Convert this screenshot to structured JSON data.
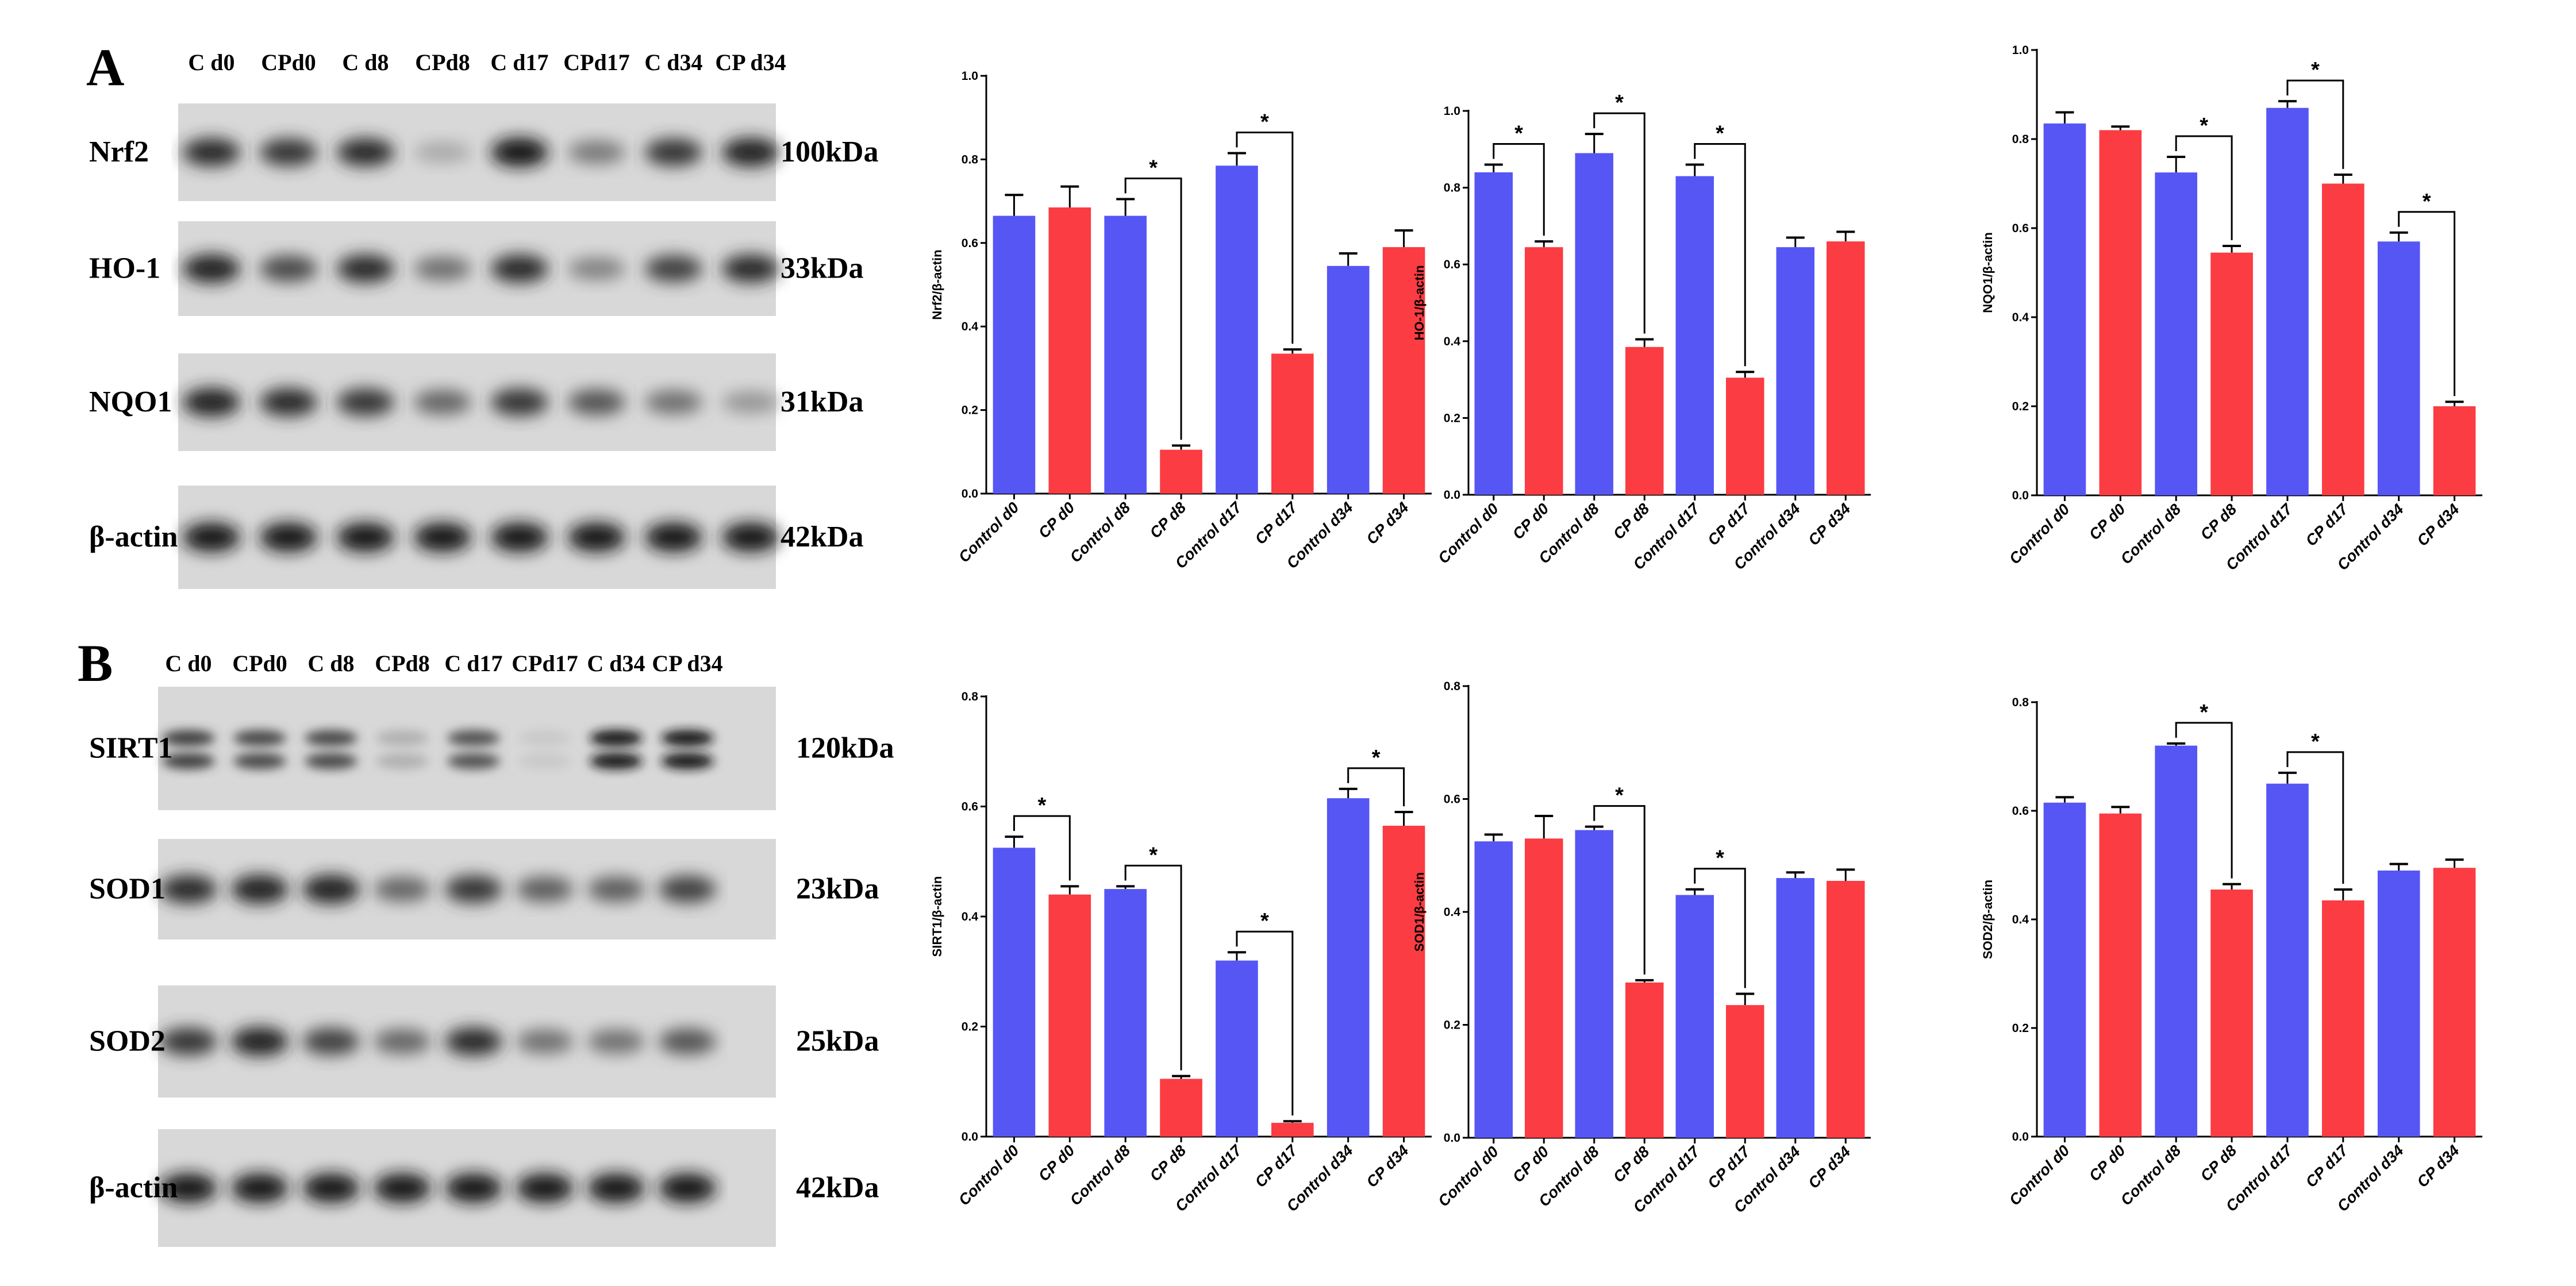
{
  "panel_a_label": "A",
  "panel_b_label": "B",
  "colors": {
    "control": "#5656f5",
    "cp": "#fb3c42"
  },
  "blots": [
    {
      "panel": "A",
      "lanes": [
        "C d0",
        "CPd0",
        "C d8",
        "CPd8",
        "C d17",
        "CPd17",
        "C d34",
        "CP d34"
      ],
      "rows": [
        {
          "protein": "Nrf2",
          "kda": "100kDa",
          "intensity": [
            0.85,
            0.8,
            0.85,
            0.2,
            0.95,
            0.45,
            0.8,
            0.9
          ]
        },
        {
          "protein": "HO-1",
          "kda": "33kDa",
          "intensity": [
            0.9,
            0.7,
            0.85,
            0.5,
            0.85,
            0.4,
            0.75,
            0.85
          ]
        },
        {
          "protein": "NQO1",
          "kda": "31kDa",
          "intensity": [
            0.9,
            0.85,
            0.8,
            0.55,
            0.8,
            0.65,
            0.5,
            0.3
          ]
        },
        {
          "protein": "β-actin",
          "kda": "42kDa",
          "intensity": [
            0.95,
            0.95,
            0.95,
            0.95,
            0.95,
            0.95,
            0.95,
            0.95
          ]
        }
      ]
    },
    {
      "panel": "B",
      "lanes": [
        "C d0",
        "CPd0",
        "C d8",
        "CPd8",
        "C d17",
        "CPd17",
        "C d34",
        "CP d34"
      ],
      "rows": [
        {
          "protein": "SIRT1",
          "kda": "120kDa",
          "intensity": [
            0.75,
            0.7,
            0.7,
            0.15,
            0.65,
            0.02,
            0.95,
            0.95
          ],
          "doublet": true
        },
        {
          "protein": "SOD1",
          "kda": "23kDa",
          "intensity": [
            0.85,
            0.9,
            0.9,
            0.55,
            0.8,
            0.6,
            0.6,
            0.75
          ]
        },
        {
          "protein": "SOD2",
          "kda": "25kDa",
          "intensity": [
            0.8,
            0.9,
            0.75,
            0.55,
            0.85,
            0.5,
            0.5,
            0.65
          ]
        },
        {
          "protein": "β-actin",
          "kda": "42kDa",
          "intensity": [
            0.95,
            0.95,
            0.95,
            0.95,
            0.95,
            0.95,
            0.95,
            0.95
          ]
        }
      ]
    }
  ],
  "chart_data": [
    {
      "type": "bar",
      "ylabel": "Nrf2/β-actin",
      "ylim": [
        0,
        1.0
      ],
      "yticks": [
        "0.0",
        "0.2",
        "0.4",
        "0.6",
        "0.8",
        "1.0"
      ],
      "categories": [
        "Control d0",
        "CP d0",
        "Control d8",
        "CP d8",
        "Control d17",
        "CP d17",
        "Control d34",
        "CP d34"
      ],
      "values": [
        0.665,
        0.685,
        0.665,
        0.105,
        0.785,
        0.335,
        0.545,
        0.59
      ],
      "errors": [
        0.05,
        0.05,
        0.04,
        0.01,
        0.03,
        0.01,
        0.03,
        0.04
      ],
      "significance": [
        {
          "from": 2,
          "to": 3,
          "label": "*"
        },
        {
          "from": 4,
          "to": 5,
          "label": "*"
        }
      ]
    },
    {
      "type": "bar",
      "ylabel": "HO-1/β-actin",
      "ylim": [
        0,
        1.0
      ],
      "yticks": [
        "0.0",
        "0.2",
        "0.4",
        "0.6",
        "0.8",
        "1.0"
      ],
      "categories": [
        "Control d0",
        "CP d0",
        "Control d8",
        "CP d8",
        "Control d17",
        "CP d17",
        "Control d34",
        "CP d34"
      ],
      "values": [
        0.84,
        0.645,
        0.89,
        0.385,
        0.83,
        0.305,
        0.645,
        0.66
      ],
      "errors": [
        0.02,
        0.015,
        0.05,
        0.02,
        0.03,
        0.015,
        0.025,
        0.025
      ],
      "significance": [
        {
          "from": 0,
          "to": 1,
          "label": "*"
        },
        {
          "from": 2,
          "to": 3,
          "label": "*"
        },
        {
          "from": 4,
          "to": 5,
          "label": "*"
        }
      ]
    },
    {
      "type": "bar",
      "ylabel": "NQO1/β-actin",
      "ylim": [
        0,
        1.0
      ],
      "yticks": [
        "0.0",
        "0.2",
        "0.4",
        "0.6",
        "0.8",
        "1.0"
      ],
      "categories": [
        "Control d0",
        "CP d0",
        "Control d8",
        "CP d8",
        "Control d17",
        "CP d17",
        "Control d34",
        "CP d34"
      ],
      "values": [
        0.835,
        0.82,
        0.725,
        0.545,
        0.87,
        0.7,
        0.57,
        0.2
      ],
      "errors": [
        0.025,
        0.008,
        0.035,
        0.015,
        0.015,
        0.02,
        0.02,
        0.01
      ],
      "significance": [
        {
          "from": 2,
          "to": 3,
          "label": "*"
        },
        {
          "from": 4,
          "to": 5,
          "label": "*"
        },
        {
          "from": 6,
          "to": 7,
          "label": "*"
        }
      ]
    },
    {
      "type": "bar",
      "ylabel": "SIRT1/β-actin",
      "ylim": [
        0,
        0.8
      ],
      "yticks": [
        "0.0",
        "0.2",
        "0.4",
        "0.6",
        "0.8"
      ],
      "categories": [
        "Control d0",
        "CP d0",
        "Control d8",
        "CP d8",
        "Control d17",
        "CP d17",
        "Control d34",
        "CP d34"
      ],
      "values": [
        0.525,
        0.44,
        0.45,
        0.105,
        0.32,
        0.025,
        0.615,
        0.565
      ],
      "errors": [
        0.02,
        0.015,
        0.005,
        0.005,
        0.015,
        0.003,
        0.017,
        0.025
      ],
      "significance": [
        {
          "from": 0,
          "to": 1,
          "label": "*"
        },
        {
          "from": 2,
          "to": 3,
          "label": "*"
        },
        {
          "from": 4,
          "to": 5,
          "label": "*"
        },
        {
          "from": 6,
          "to": 7,
          "label": "*"
        }
      ]
    },
    {
      "type": "bar",
      "ylabel": "SOD1/β-actin",
      "ylim": [
        0,
        0.8
      ],
      "yticks": [
        "0.0",
        "0.2",
        "0.4",
        "0.6",
        "0.8"
      ],
      "categories": [
        "Control d0",
        "CP d0",
        "Control d8",
        "CP d8",
        "Control d17",
        "CP d17",
        "Control d34",
        "CP d34"
      ],
      "values": [
        0.525,
        0.53,
        0.545,
        0.275,
        0.43,
        0.235,
        0.46,
        0.455
      ],
      "errors": [
        0.012,
        0.04,
        0.006,
        0.004,
        0.01,
        0.02,
        0.01,
        0.02
      ],
      "significance": [
        {
          "from": 2,
          "to": 3,
          "label": "*"
        },
        {
          "from": 4,
          "to": 5,
          "label": "*"
        }
      ]
    },
    {
      "type": "bar",
      "ylabel": "SOD2/β-actin",
      "ylim": [
        0,
        0.8
      ],
      "yticks": [
        "0.0",
        "0.2",
        "0.4",
        "0.6",
        "0.8"
      ],
      "categories": [
        "Control d0",
        "CP d0",
        "Control d8",
        "CP d8",
        "Control d17",
        "CP d17",
        "Control d34",
        "CP d34"
      ],
      "values": [
        0.615,
        0.595,
        0.72,
        0.455,
        0.65,
        0.435,
        0.49,
        0.495
      ],
      "errors": [
        0.01,
        0.012,
        0.004,
        0.01,
        0.02,
        0.02,
        0.012,
        0.015
      ],
      "significance": [
        {
          "from": 2,
          "to": 3,
          "label": "*"
        },
        {
          "from": 4,
          "to": 5,
          "label": "*"
        }
      ]
    }
  ]
}
